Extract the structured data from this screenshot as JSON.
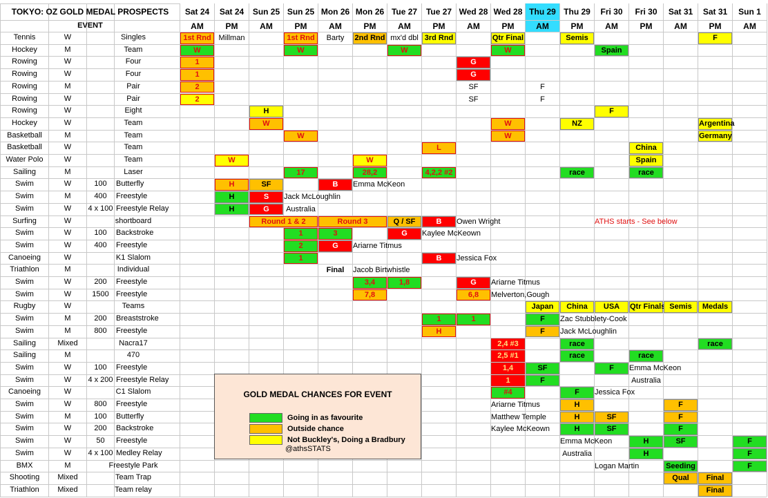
{
  "title": "TOKYO: OZ GOLD MEDAL PROSPECTS",
  "event_header": "EVENT",
  "colors": {
    "green": "#22dd22",
    "orange": "#ffc000",
    "yellow": "#ffff00",
    "red": "#ff0000",
    "highlight": "#33ddff"
  },
  "columns": [
    {
      "day": "Sat 24",
      "time": "AM"
    },
    {
      "day": "Sat 24",
      "time": "PM"
    },
    {
      "day": "Sun 25",
      "time": "AM"
    },
    {
      "day": "Sun 25",
      "time": "PM"
    },
    {
      "day": "Mon 26",
      "time": "AM"
    },
    {
      "day": "Mon 26",
      "time": "PM"
    },
    {
      "day": "Tue 27",
      "time": "AM"
    },
    {
      "day": "Tue 27",
      "time": "PM"
    },
    {
      "day": "Wed 28",
      "time": "AM"
    },
    {
      "day": "Wed 28",
      "time": "PM"
    },
    {
      "day": "Thu 29",
      "time": "AM",
      "highlight": true
    },
    {
      "day": "Thu 29",
      "time": "PM"
    },
    {
      "day": "Fri 30",
      "time": "AM"
    },
    {
      "day": "Fri 30",
      "time": "PM"
    },
    {
      "day": "Sat 31",
      "time": "AM"
    },
    {
      "day": "Sat 31",
      "time": "PM"
    },
    {
      "day": "Sun 1",
      "time": "AM"
    }
  ],
  "rows": [
    {
      "sport": "Tennis",
      "gender": "W",
      "event": "Singles",
      "cells": [
        {
          "col": 0,
          "text": "1st Rnd",
          "fill": "orange",
          "accent": true
        },
        {
          "col": 1,
          "text": "Millman"
        },
        {
          "col": 3,
          "text": "1st Rnd",
          "fill": "orange",
          "accent": true
        },
        {
          "col": 4,
          "text": "Barty"
        },
        {
          "col": 5,
          "text": "2nd Rnd",
          "fill": "orange"
        },
        {
          "col": 6,
          "text": "mx'd dbl"
        },
        {
          "col": 7,
          "text": "3rd Rnd",
          "fill": "yellow"
        },
        {
          "col": 9,
          "text": "Qtr Final",
          "fill": "yellow"
        },
        {
          "col": 11,
          "text": "Semis",
          "fill": "yellow"
        },
        {
          "col": 15,
          "text": "F",
          "fill": "yellow"
        }
      ]
    },
    {
      "sport": "Hockey",
      "gender": "M",
      "event": "Team",
      "cells": [
        {
          "col": 0,
          "text": "W",
          "fill": "green",
          "accent": true
        },
        {
          "col": 3,
          "text": "W",
          "fill": "green",
          "accent": true
        },
        {
          "col": 6,
          "text": "W",
          "fill": "green",
          "accent": true
        },
        {
          "col": 9,
          "text": "W",
          "fill": "green",
          "accent": true
        },
        {
          "col": 12,
          "text": "Spain",
          "fill": "green"
        }
      ]
    },
    {
      "sport": "Rowing",
      "gender": "W",
      "event": "Four",
      "cells": [
        {
          "col": 0,
          "text": "1",
          "fill": "orange",
          "accent": true
        },
        {
          "col": 8,
          "text": "G",
          "fill": "red"
        }
      ]
    },
    {
      "sport": "Rowing",
      "gender": "W",
      "event": "Four",
      "cells": [
        {
          "col": 0,
          "text": "1",
          "fill": "orange",
          "accent": true
        },
        {
          "col": 8,
          "text": "G",
          "fill": "red"
        }
      ]
    },
    {
      "sport": "Rowing",
      "gender": "M",
      "event": "Pair",
      "cells": [
        {
          "col": 0,
          "text": "2",
          "fill": "orange",
          "accent": true
        },
        {
          "col": 8,
          "text": "SF"
        },
        {
          "col": 10,
          "text": "F"
        }
      ]
    },
    {
      "sport": "Rowing",
      "gender": "W",
      "event": "Pair",
      "cells": [
        {
          "col": 0,
          "text": "2",
          "fill": "yellow",
          "accent": true
        },
        {
          "col": 8,
          "text": "SF"
        },
        {
          "col": 10,
          "text": "F"
        }
      ]
    },
    {
      "sport": "Rowing",
      "gender": "W",
      "event": "Eight",
      "cells": [
        {
          "col": 2,
          "text": "H",
          "fill": "yellow"
        },
        {
          "col": 12,
          "text": "F",
          "fill": "yellow"
        }
      ]
    },
    {
      "sport": "Hockey",
      "gender": "W",
      "event": "Team",
      "cells": [
        {
          "col": 2,
          "text": "W",
          "fill": "orange",
          "accent": true
        },
        {
          "col": 9,
          "text": "W",
          "fill": "orange",
          "accent": true
        },
        {
          "col": 11,
          "text": "NZ",
          "fill": "yellow"
        },
        {
          "col": 15,
          "text": "Argentina",
          "fill": "yellow"
        }
      ]
    },
    {
      "sport": "Basketball",
      "gender": "M",
      "event": "Team",
      "cells": [
        {
          "col": 3,
          "text": "W",
          "fill": "orange",
          "accent": true
        },
        {
          "col": 9,
          "text": "W",
          "fill": "orange",
          "accent": true
        },
        {
          "col": 15,
          "text": "Germany",
          "fill": "yellow"
        }
      ]
    },
    {
      "sport": "Basketball",
      "gender": "W",
      "event": "Team",
      "cells": [
        {
          "col": 7,
          "text": "L",
          "fill": "orange",
          "accent": true
        },
        {
          "col": 13,
          "text": "China",
          "fill": "yellow"
        }
      ]
    },
    {
      "sport": "Water Polo",
      "gender": "W",
      "event": "Team",
      "cells": [
        {
          "col": 1,
          "text": "W",
          "fill": "yellow",
          "accent": true
        },
        {
          "col": 5,
          "text": "W",
          "fill": "yellow",
          "accent": true
        },
        {
          "col": 13,
          "text": "Spain",
          "fill": "yellow"
        }
      ]
    },
    {
      "sport": "Sailing",
      "gender": "M",
      "event": "Laser",
      "cells": [
        {
          "col": 3,
          "text": "17",
          "fill": "green",
          "accent": true
        },
        {
          "col": 5,
          "text": "28,2",
          "fill": "green",
          "accent": true
        },
        {
          "col": 7,
          "text": "4,2,2 #2",
          "fill": "green",
          "accent": true
        },
        {
          "col": 11,
          "text": "race",
          "fill": "green"
        },
        {
          "col": 13,
          "text": "race",
          "fill": "green"
        }
      ]
    },
    {
      "sport": "Swim",
      "gender": "W",
      "dist": "100",
      "event": "Butterfly",
      "cells": [
        {
          "col": 1,
          "text": "H",
          "fill": "orange",
          "accent": true
        },
        {
          "col": 2,
          "text": "SF",
          "fill": "orange"
        },
        {
          "col": 4,
          "text": "B",
          "fill": "red"
        },
        {
          "col": 5,
          "text": "Emma McKeon"
        }
      ]
    },
    {
      "sport": "Swim",
      "gender": "M",
      "dist": "400",
      "event": "Freestyle",
      "cells": [
        {
          "col": 1,
          "text": "H",
          "fill": "green"
        },
        {
          "col": 2,
          "text": "S",
          "fill": "red"
        },
        {
          "col": 3,
          "text": "Jack McLoughlin"
        }
      ]
    },
    {
      "sport": "Swim",
      "gender": "W",
      "dist": "4 x 100",
      "event": "Freestyle Relay",
      "cells": [
        {
          "col": 1,
          "text": "H",
          "fill": "green"
        },
        {
          "col": 2,
          "text": "G",
          "fill": "red"
        },
        {
          "col": 3,
          "text": "Australia"
        }
      ]
    },
    {
      "sport": "Surfing",
      "gender": "W",
      "event": "shortboard",
      "cells": [
        {
          "col": 2,
          "span": 2,
          "text": "Round 1 & 2",
          "fill": "orange",
          "accent": true
        },
        {
          "col": 4,
          "span": 2,
          "text": "Round 3",
          "fill": "orange",
          "accent": true
        },
        {
          "col": 6,
          "text": "Q / SF",
          "fill": "orange"
        },
        {
          "col": 7,
          "text": "B",
          "fill": "red"
        },
        {
          "col": 8,
          "text": "Owen Wright"
        },
        {
          "col": 12,
          "text": "ATHS starts - See below",
          "accent": true
        }
      ]
    },
    {
      "sport": "Swim",
      "gender": "W",
      "dist": "100",
      "event": "Backstroke",
      "cells": [
        {
          "col": 3,
          "text": "1",
          "fill": "green",
          "accent": true
        },
        {
          "col": 4,
          "text": "3",
          "fill": "green",
          "accent": true
        },
        {
          "col": 6,
          "text": "G",
          "fill": "red"
        },
        {
          "col": 7,
          "text": "Kaylee McKeown"
        }
      ]
    },
    {
      "sport": "Swim",
      "gender": "W",
      "dist": "400",
      "event": "Freestyle",
      "cells": [
        {
          "col": 3,
          "text": "2",
          "fill": "green",
          "accent": true
        },
        {
          "col": 4,
          "text": "G",
          "fill": "red"
        },
        {
          "col": 5,
          "text": "Ariarne Titmus"
        }
      ]
    },
    {
      "sport": "Canoeing",
      "gender": "W",
      "event": "K1 Slalom",
      "cells": [
        {
          "col": 3,
          "text": "1",
          "fill": "green",
          "accent": true
        },
        {
          "col": 7,
          "text": "B",
          "fill": "red"
        },
        {
          "col": 8,
          "text": "Jessica Fox"
        }
      ]
    },
    {
      "sport": "Triathlon",
      "gender": "M",
      "event": "Individual",
      "cells": [
        {
          "col": 4,
          "text": "Final",
          "bold": true
        },
        {
          "col": 5,
          "text": "Jacob Birtwhistle"
        }
      ]
    },
    {
      "sport": "Swim",
      "gender": "W",
      "dist": "200",
      "event": "Freestyle",
      "cells": [
        {
          "col": 5,
          "text": "3,4",
          "fill": "green",
          "accent": true
        },
        {
          "col": 6,
          "text": "1,8",
          "fill": "green",
          "accent": true
        },
        {
          "col": 8,
          "text": "G",
          "fill": "red"
        },
        {
          "col": 9,
          "text": "Ariarne Titmus"
        }
      ]
    },
    {
      "sport": "Swim",
      "gender": "W",
      "dist": "1500",
      "event": "Freestyle",
      "cells": [
        {
          "col": 5,
          "text": "7,8",
          "fill": "orange",
          "accent": true
        },
        {
          "col": 8,
          "text": "6,8",
          "fill": "orange",
          "accent": true
        },
        {
          "col": 9,
          "text": "Melverton,Gough"
        }
      ]
    },
    {
      "sport": "Rugby",
      "gender": "W",
      "event": "Teams",
      "cells": [
        {
          "col": 10,
          "text": "Japan",
          "fill": "yellow"
        },
        {
          "col": 11,
          "text": "China",
          "fill": "yellow"
        },
        {
          "col": 12,
          "text": "USA",
          "fill": "yellow"
        },
        {
          "col": 13,
          "text": "Qtr Finals",
          "fill": "yellow"
        },
        {
          "col": 14,
          "text": "Semis",
          "fill": "yellow"
        },
        {
          "col": 15,
          "text": "Medals",
          "fill": "yellow"
        }
      ]
    },
    {
      "sport": "Swim",
      "gender": "M",
      "dist": "200",
      "event": "Breaststroke",
      "cells": [
        {
          "col": 7,
          "text": "1",
          "fill": "green",
          "accent": true
        },
        {
          "col": 8,
          "text": "1",
          "fill": "green",
          "accent": true
        },
        {
          "col": 10,
          "text": "F",
          "fill": "green"
        },
        {
          "col": 11,
          "text": "Zac Stubblety-Cook"
        }
      ]
    },
    {
      "sport": "Swim",
      "gender": "M",
      "dist": "800",
      "event": "Freestyle",
      "cells": [
        {
          "col": 7,
          "text": "H",
          "fill": "orange",
          "accent": true
        },
        {
          "col": 10,
          "text": "F",
          "fill": "orange"
        },
        {
          "col": 11,
          "text": "Jack McLoughlin"
        }
      ]
    },
    {
      "sport": "Sailing",
      "gender": "Mixed",
      "event": "Nacra17",
      "cells": [
        {
          "col": 9,
          "text": "2,4  #3",
          "fill": "red",
          "accent": true
        },
        {
          "col": 11,
          "text": "race",
          "fill": "green"
        },
        {
          "col": 15,
          "text": "race",
          "fill": "green"
        }
      ]
    },
    {
      "sport": "Sailing",
      "gender": "M",
      "event": "470",
      "cells": [
        {
          "col": 9,
          "text": "2,5  #1",
          "fill": "red",
          "accent": true
        },
        {
          "col": 11,
          "text": "race",
          "fill": "green"
        },
        {
          "col": 13,
          "text": "race",
          "fill": "green"
        }
      ]
    },
    {
      "sport": "Swim",
      "gender": "W",
      "dist": "100",
      "event": "Freestyle",
      "cells": [
        {
          "col": 9,
          "text": "1,4",
          "fill": "red",
          "accent": true
        },
        {
          "col": 10,
          "text": "SF",
          "fill": "green"
        },
        {
          "col": 12,
          "text": "F",
          "fill": "green"
        },
        {
          "col": 13,
          "text": "Emma McKeon"
        }
      ]
    },
    {
      "sport": "Swim",
      "gender": "W",
      "dist": "4 x 200",
      "event": "Freestyle Relay",
      "cells": [
        {
          "col": 9,
          "text": "1",
          "fill": "red",
          "accent": true
        },
        {
          "col": 10,
          "text": "F",
          "fill": "green"
        },
        {
          "col": 13,
          "text": "Australia"
        }
      ]
    },
    {
      "sport": "Canoeing",
      "gender": "W",
      "event": "C1 Slalom",
      "cells": [
        {
          "col": 9,
          "text": "#4",
          "fill": "green",
          "accent": true
        },
        {
          "col": 11,
          "text": "F",
          "fill": "green"
        },
        {
          "col": 12,
          "text": "Jessica Fox"
        }
      ]
    },
    {
      "sport": "Swim",
      "gender": "W",
      "dist": "800",
      "event": "Freestyle",
      "cells": [
        {
          "col": 9,
          "text": "Ariarne Titmus"
        },
        {
          "col": 11,
          "text": "H",
          "fill": "orange"
        },
        {
          "col": 14,
          "text": "F",
          "fill": "orange"
        }
      ]
    },
    {
      "sport": "Swim",
      "gender": "M",
      "dist": "100",
      "event": "Butterfly",
      "cells": [
        {
          "col": 9,
          "text": "Matthew Temple"
        },
        {
          "col": 11,
          "text": "H",
          "fill": "orange"
        },
        {
          "col": 12,
          "text": "SF",
          "fill": "orange"
        },
        {
          "col": 14,
          "text": "F",
          "fill": "orange"
        }
      ]
    },
    {
      "sport": "Swim",
      "gender": "W",
      "dist": "200",
      "event": "Backstroke",
      "cells": [
        {
          "col": 9,
          "text": "Kaylee McKeown"
        },
        {
          "col": 11,
          "text": "H",
          "fill": "green"
        },
        {
          "col": 12,
          "text": "SF",
          "fill": "green"
        },
        {
          "col": 14,
          "text": "F",
          "fill": "green"
        }
      ]
    },
    {
      "sport": "Swim",
      "gender": "W",
      "dist": "50",
      "event": "Freestyle",
      "cells": [
        {
          "col": 11,
          "text": "Emma McKeon"
        },
        {
          "col": 13,
          "text": "H",
          "fill": "green"
        },
        {
          "col": 14,
          "text": "SF",
          "fill": "green"
        },
        {
          "col": 16,
          "text": "F",
          "fill": "green"
        }
      ]
    },
    {
      "sport": "Swim",
      "gender": "W",
      "dist": "4 x 100",
      "event": "Medley Relay",
      "cells": [
        {
          "col": 11,
          "text": "Australia"
        },
        {
          "col": 13,
          "text": "H",
          "fill": "green"
        },
        {
          "col": 16,
          "text": "F",
          "fill": "green"
        }
      ]
    },
    {
      "sport": "BMX",
      "gender": "M",
      "event": "Freestyle Park",
      "cells": [
        {
          "col": 12,
          "text": "Logan Martin"
        },
        {
          "col": 14,
          "text": "Seeding",
          "fill": "green"
        },
        {
          "col": 16,
          "text": "F",
          "fill": "green"
        }
      ]
    },
    {
      "sport": "Shooting",
      "gender": "Mixed",
      "event": "Team Trap",
      "cells": [
        {
          "col": 14,
          "text": "Qual",
          "fill": "orange"
        },
        {
          "col": 15,
          "text": "Final",
          "fill": "orange"
        }
      ]
    },
    {
      "sport": "Triathlon",
      "gender": "Mixed",
      "event": "Team relay",
      "cells": [
        {
          "col": 15,
          "text": "Final",
          "fill": "orange"
        }
      ]
    }
  ],
  "legend": {
    "title": "GOLD MEDAL CHANCES FOR EVENT",
    "items": [
      {
        "label": "Going in as favourite",
        "fill": "green"
      },
      {
        "label": "Outside chance",
        "fill": "orange"
      },
      {
        "label": "Not Buckley's, Doing a Bradbury",
        "fill": "yellow"
      }
    ],
    "credit": "@athsSTATS"
  }
}
